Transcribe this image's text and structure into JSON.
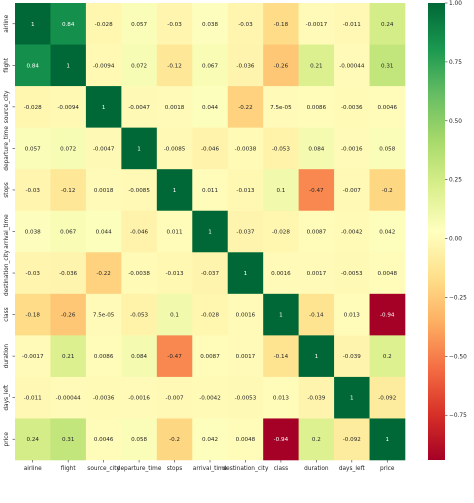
{
  "chart_data": {
    "type": "heatmap",
    "title": "",
    "xlabel": "",
    "ylabel": "",
    "labels": [
      "airline",
      "flight",
      "source_city",
      "departure_time",
      "stops",
      "arrival_time",
      "destination_city",
      "class",
      "duration",
      "days_left",
      "price"
    ],
    "values": [
      [
        1,
        0.84,
        -0.028,
        0.057,
        -0.03,
        0.038,
        -0.03,
        -0.18,
        -0.0017,
        -0.011,
        0.24
      ],
      [
        0.84,
        1,
        -0.0094,
        0.072,
        -0.12,
        0.067,
        -0.036,
        -0.26,
        0.21,
        -0.00044,
        0.31
      ],
      [
        -0.028,
        -0.0094,
        1,
        -0.0047,
        0.0018,
        0.044,
        -0.22,
        7.5e-05,
        0.0086,
        -0.0036,
        0.0046
      ],
      [
        0.057,
        0.072,
        -0.0047,
        1,
        -0.0085,
        -0.046,
        -0.0038,
        -0.053,
        0.084,
        -0.0016,
        0.058
      ],
      [
        -0.03,
        -0.12,
        0.0018,
        -0.0085,
        1,
        0.011,
        -0.013,
        0.1,
        -0.47,
        -0.007,
        -0.2
      ],
      [
        0.038,
        0.067,
        0.044,
        -0.046,
        0.011,
        1,
        -0.037,
        -0.028,
        0.0087,
        -0.0042,
        0.042
      ],
      [
        -0.03,
        -0.036,
        -0.22,
        -0.0038,
        -0.013,
        -0.037,
        1,
        0.0016,
        0.0017,
        -0.0053,
        0.0048
      ],
      [
        -0.18,
        -0.26,
        7.5e-05,
        -0.053,
        0.1,
        -0.028,
        0.0016,
        1,
        -0.14,
        0.013,
        -0.94
      ],
      [
        -0.0017,
        0.21,
        0.0086,
        0.084,
        -0.47,
        0.0087,
        0.0017,
        -0.14,
        1,
        -0.039,
        0.2
      ],
      [
        -0.011,
        -0.00044,
        -0.0036,
        -0.0016,
        -0.007,
        -0.0042,
        -0.0053,
        0.013,
        -0.039,
        1,
        -0.092
      ],
      [
        0.24,
        0.31,
        0.0046,
        0.058,
        -0.2,
        0.042,
        0.0048,
        -0.94,
        0.2,
        -0.092,
        1
      ]
    ],
    "cell_text": [
      [
        "1",
        "0.84",
        "-0.028",
        "0.057",
        "-0.03",
        "0.038",
        "-0.03",
        "-0.18",
        "-0.0017",
        "-0.011",
        "0.24"
      ],
      [
        "0.84",
        "1",
        "-0.0094",
        "0.072",
        "-0.12",
        "0.067",
        "-0.036",
        "-0.26",
        "0.21",
        "-0.00044",
        "0.31"
      ],
      [
        "-0.028",
        "-0.0094",
        "1",
        "-0.0047",
        "0.0018",
        "0.044",
        "-0.22",
        "7.5e-05",
        "0.0086",
        "-0.0036",
        "0.0046"
      ],
      [
        "0.057",
        "0.072",
        "-0.0047",
        "1",
        "-0.0085",
        "-0.046",
        "-0.0038",
        "-0.053",
        "0.084",
        "-0.0016",
        "0.058"
      ],
      [
        "-0.03",
        "-0.12",
        "0.0018",
        "-0.0085",
        "1",
        "0.011",
        "-0.013",
        "0.1",
        "-0.47",
        "-0.007",
        "-0.2"
      ],
      [
        "0.038",
        "0.067",
        "0.044",
        "-0.046",
        "0.011",
        "1",
        "-0.037",
        "-0.028",
        "0.0087",
        "-0.0042",
        "0.042"
      ],
      [
        "-0.03",
        "-0.036",
        "-0.22",
        "-0.0038",
        "-0.013",
        "-0.037",
        "1",
        "0.0016",
        "0.0017",
        "-0.0053",
        "0.0048"
      ],
      [
        "-0.18",
        "-0.26",
        "7.5e-05",
        "-0.053",
        "0.1",
        "-0.028",
        "0.0016",
        "1",
        "-0.14",
        "0.013",
        "-0.94"
      ],
      [
        "-0.0017",
        "0.21",
        "0.0086",
        "0.084",
        "-0.47",
        "0.0087",
        "0.0017",
        "-0.14",
        "1",
        "-0.039",
        "0.2"
      ],
      [
        "-0.011",
        "-0.00044",
        "-0.0036",
        "-0.0016",
        "-0.007",
        "-0.0042",
        "-0.0053",
        "0.013",
        "-0.039",
        "1",
        "-0.092"
      ],
      [
        "0.24",
        "0.31",
        "0.0046",
        "0.058",
        "-0.2",
        "0.042",
        "0.0048",
        "-0.94",
        "0.2",
        "-0.092",
        "1"
      ]
    ],
    "colormap": "RdYlGn",
    "colormap_stops": [
      "#a50026",
      "#d73027",
      "#f46d43",
      "#fdae61",
      "#fee08b",
      "#ffffbf",
      "#d9ef8b",
      "#a6d96a",
      "#66bd63",
      "#1a9850",
      "#006837"
    ],
    "vmin": -0.94,
    "vmax": 1,
    "colorbar_ticks": [
      1.0,
      0.75,
      0.5,
      0.25,
      0.0,
      -0.25,
      -0.5,
      -0.75
    ],
    "colorbar_tick_labels": [
      "1.00",
      "0.75",
      "0.50",
      "0.25",
      "0.00",
      "−0.25",
      "−0.50",
      "−0.75"
    ]
  }
}
